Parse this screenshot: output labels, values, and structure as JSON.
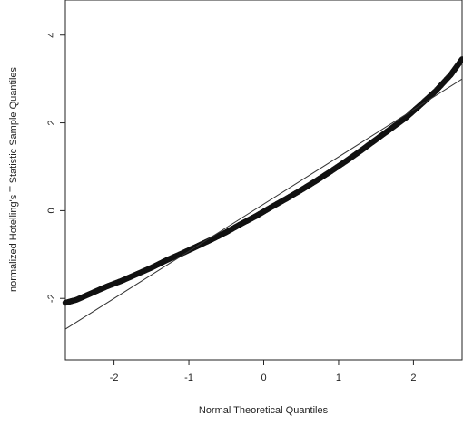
{
  "chart_data": {
    "type": "scatter",
    "title": "",
    "xlabel": "Normal Theoretical Quantiles",
    "ylabel": "normalized Hotelling's T Statistic Sample Quantiles",
    "xlim": [
      -2.65,
      2.65
    ],
    "ylim": [
      -3.4,
      4.8
    ],
    "x_ticks": [
      -2,
      -1,
      0,
      1,
      2
    ],
    "x_tick_labels": [
      "-2",
      "-1",
      "0",
      "1",
      "2"
    ],
    "y_ticks": [
      -2,
      0,
      2,
      4
    ],
    "y_tick_labels": [
      "-2",
      "0",
      "2",
      "4"
    ],
    "grid": false,
    "legend": "none",
    "series": [
      {
        "kind": "points",
        "color": "#111111",
        "x": [
          -2.65,
          -2.5,
          -2.3,
          -2.1,
          -1.9,
          -1.7,
          -1.5,
          -1.3,
          -1.1,
          -0.9,
          -0.7,
          -0.5,
          -0.3,
          -0.1,
          0.1,
          0.3,
          0.5,
          0.7,
          0.9,
          1.1,
          1.3,
          1.5,
          1.7,
          1.9,
          2.1,
          2.3,
          2.5,
          2.65
        ],
        "y": [
          -2.1,
          -2.03,
          -1.88,
          -1.73,
          -1.6,
          -1.45,
          -1.3,
          -1.13,
          -0.98,
          -0.82,
          -0.66,
          -0.49,
          -0.3,
          -0.12,
          0.08,
          0.27,
          0.47,
          0.68,
          0.9,
          1.13,
          1.37,
          1.62,
          1.87,
          2.12,
          2.42,
          2.73,
          3.1,
          3.45
        ]
      },
      {
        "kind": "reference-line",
        "color": "#333333",
        "x": [
          -2.65,
          2.65
        ],
        "y": [
          -2.7,
          3.0
        ]
      }
    ]
  }
}
